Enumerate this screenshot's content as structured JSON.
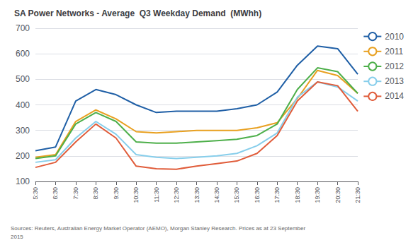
{
  "chart_data": {
    "type": "line",
    "title": "SA Power Networks - Average  Q3 Weekday Demand  (MWhh)",
    "annotations": [
      "Sources: Reuters, Australian Energy Market Operator (AEMO), Morgan Stanley Research. Prices as at 23 September\n2015"
    ],
    "categories": [
      "5:30",
      "6:30",
      "7:30",
      "8:30",
      "9:30",
      "10:30",
      "11:30",
      "12:30",
      "13:30",
      "14:30",
      "15:30",
      "16:30",
      "17:30",
      "18:30",
      "19:30",
      "20:30",
      "21:30"
    ],
    "series": [
      {
        "name": "2010",
        "color": "#1f5fa6",
        "values": [
          220,
          235,
          415,
          460,
          440,
          400,
          370,
          375,
          375,
          375,
          385,
          400,
          450,
          555,
          630,
          620,
          520
        ]
      },
      {
        "name": "2011",
        "color": "#e8a020",
        "values": [
          195,
          205,
          335,
          380,
          345,
          295,
          290,
          295,
          300,
          300,
          300,
          310,
          330,
          425,
          535,
          515,
          445
        ]
      },
      {
        "name": "2012",
        "color": "#4daf4a",
        "values": [
          190,
          200,
          325,
          370,
          335,
          255,
          250,
          250,
          255,
          260,
          265,
          280,
          325,
          460,
          545,
          530,
          445
        ]
      },
      {
        "name": "2013",
        "color": "#87ceeb",
        "values": [
          175,
          185,
          270,
          335,
          285,
          205,
          195,
          190,
          195,
          200,
          210,
          240,
          290,
          430,
          490,
          470,
          415
        ]
      },
      {
        "name": "2014",
        "color": "#e05c3a",
        "values": [
          155,
          175,
          255,
          325,
          270,
          160,
          150,
          148,
          160,
          170,
          180,
          210,
          280,
          415,
          490,
          475,
          375
        ]
      }
    ],
    "ylim": [
      100,
      700
    ],
    "yticks": [
      100,
      200,
      300,
      400,
      500,
      600,
      700
    ],
    "grid": true,
    "legend": "right"
  }
}
